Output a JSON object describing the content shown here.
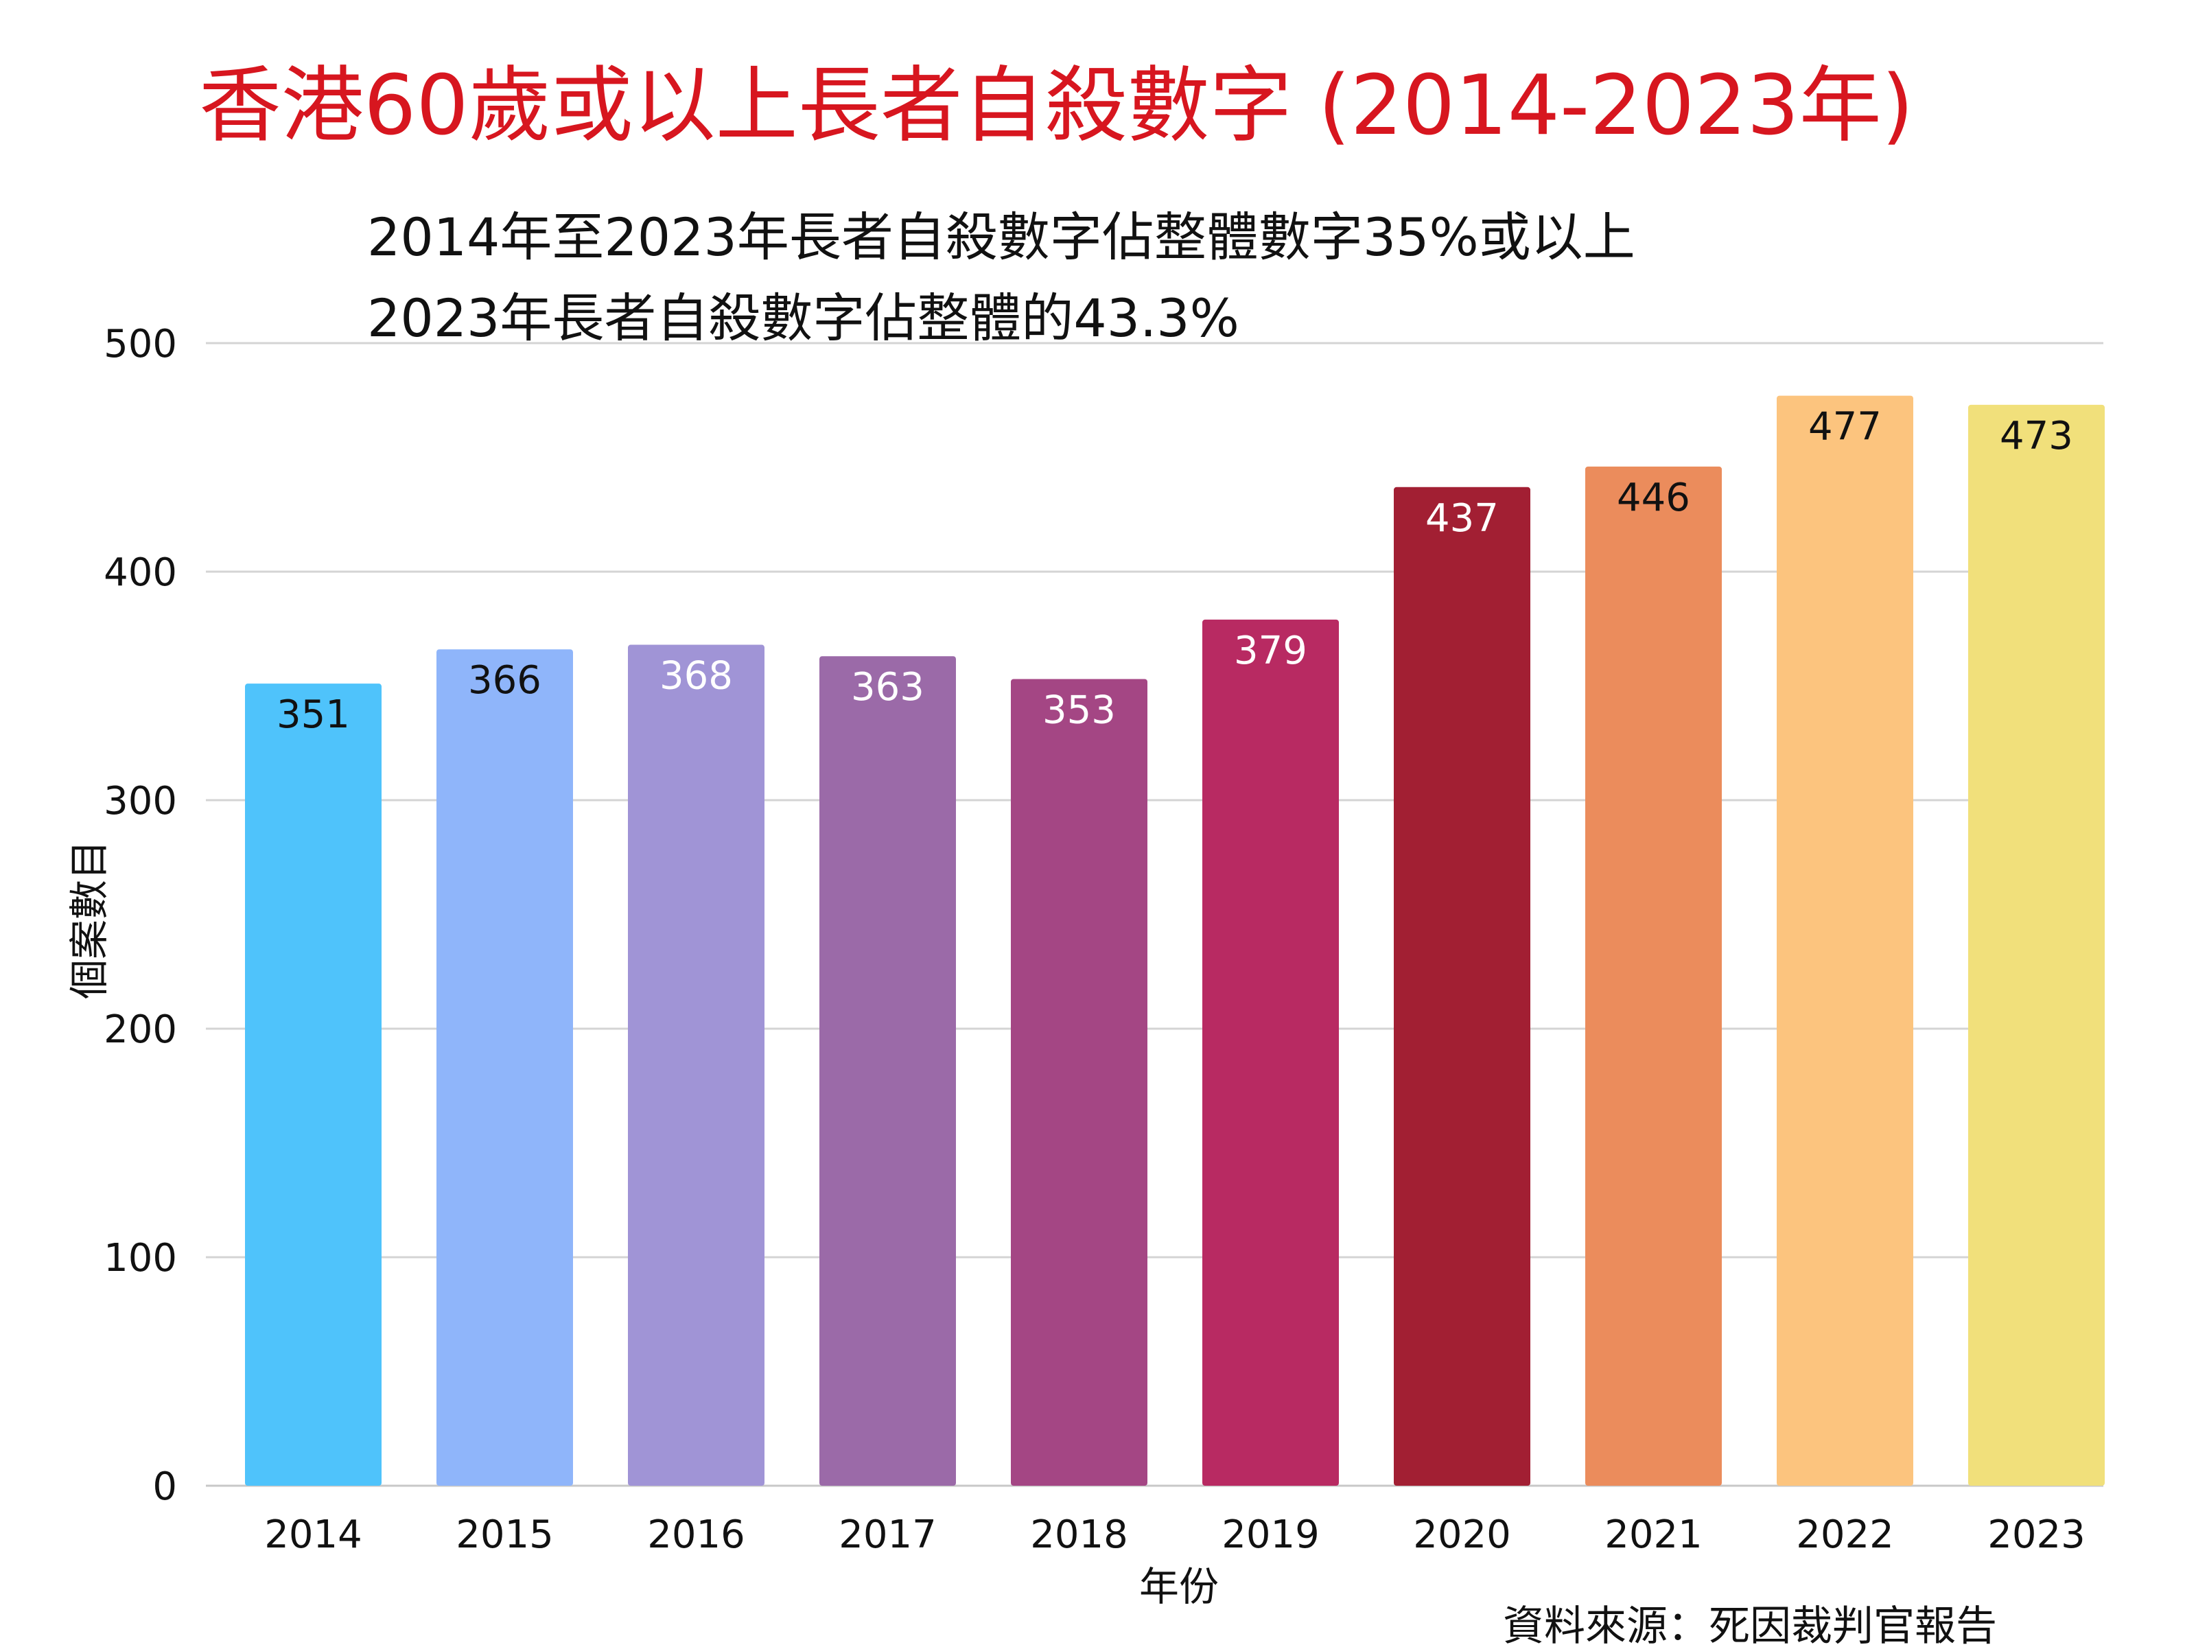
{
  "chart_data": {
    "type": "bar",
    "title": "香港60歲或以上長者自殺數字 (2014-2023年)",
    "subtitle_lines": [
      "2014年至2023年長者自殺數字佔整體數字35%或以上",
      "2023年長者自殺數字佔整體的43.3%"
    ],
    "xlabel": "年份",
    "ylabel": "個案數目",
    "categories": [
      "2014",
      "2015",
      "2016",
      "2017",
      "2018",
      "2019",
      "2020",
      "2021",
      "2022",
      "2023"
    ],
    "values": [
      351,
      366,
      368,
      363,
      353,
      379,
      437,
      446,
      477,
      473
    ],
    "data_labels": [
      "351",
      "366",
      "368",
      "363",
      "353",
      "379",
      "437",
      "446",
      "477",
      "473"
    ],
    "bar_colors": [
      "#4fc3fb",
      "#8fb5fa",
      "#a094d6",
      "#9b6aa8",
      "#a44684",
      "#b82a62",
      "#a21f33",
      "#eb8c5c",
      "#fcc47e",
      "#f1e07b"
    ],
    "label_colors": [
      "#111111",
      "#111111",
      "#ffffff",
      "#ffffff",
      "#ffffff",
      "#ffffff",
      "#ffffff",
      "#111111",
      "#111111",
      "#111111"
    ],
    "ylim": [
      0,
      500
    ],
    "yticks": [
      0,
      100,
      200,
      300,
      400,
      500
    ],
    "ytick_labels": [
      "0",
      "100",
      "200",
      "300",
      "400",
      "500"
    ],
    "grid": true,
    "legend": "none",
    "source": "資料來源：死因裁判官報告",
    "title_color": "#d7161f"
  }
}
